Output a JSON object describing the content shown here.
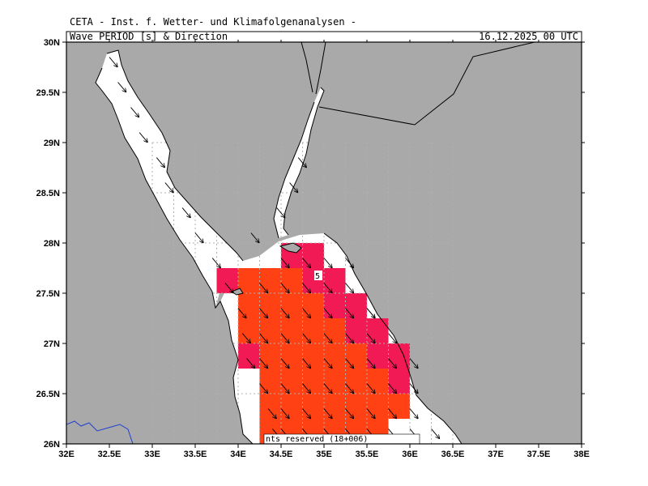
{
  "header": {
    "title": "CETA - Inst. f. Wetter- und Klimafolgenanalysen -",
    "variable": "Wave_PERIOD_[s]_&_Direction",
    "datetime": "16.12.2025 00 UTC"
  },
  "map": {
    "lon_range": [
      32,
      38
    ],
    "lat_range": [
      26,
      30
    ],
    "lon_ticks": [
      "32E",
      "32.5E",
      "33E",
      "33.5E",
      "34E",
      "34.5E",
      "35E",
      "35.5E",
      "36E",
      "36.5E",
      "37E",
      "37.5E",
      "38E"
    ],
    "lat_ticks": [
      "26N",
      "26.5N",
      "27N",
      "27.5N",
      "28N",
      "28.5N",
      "29N",
      "29.5N",
      "30N"
    ],
    "contour_label": "5",
    "footer_text": "nts reserved (18+006)",
    "colors": {
      "land": "#a9a9a9",
      "sea": "#ffffff",
      "period_high": "#ff4114",
      "period_mid": "#f21a55",
      "river": "#1f3fcf",
      "border": "#000000"
    }
  }
}
